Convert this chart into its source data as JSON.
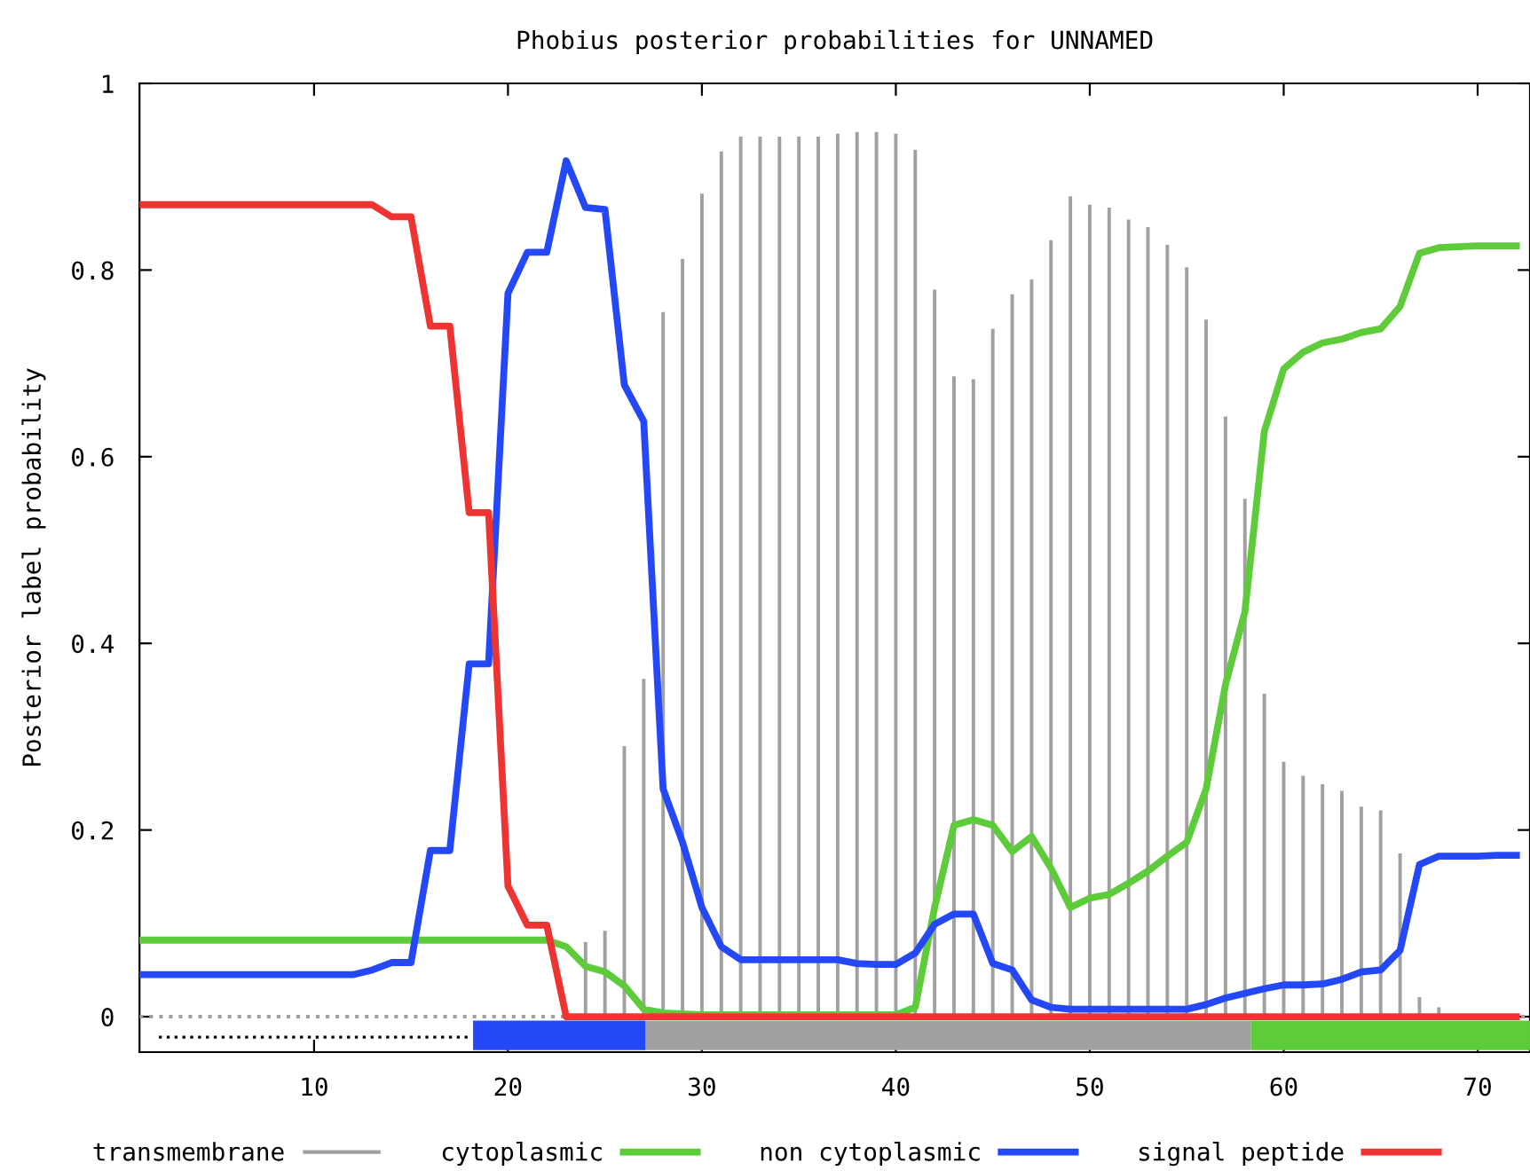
{
  "chart_data": {
    "type": "line",
    "title": "Phobius posterior probabilities for UNNAMED",
    "ylabel": "Posterior label probability",
    "xlim": [
      1,
      72.7
    ],
    "ylim": [
      -0.038,
      1
    ],
    "xticks": [
      10,
      20,
      30,
      40,
      50,
      60,
      70
    ],
    "yticks": [
      0,
      {
        "value": 0.2,
        "label": "0.2"
      },
      {
        "value": 0.4,
        "label": "0.4"
      },
      {
        "value": 0.6,
        "label": "0.6"
      },
      {
        "value": 0.8,
        "label": "0.8"
      },
      1
    ],
    "legend": "bottom",
    "grid": false,
    "ref_lines": [
      {
        "axis": "y",
        "value": 0,
        "color": "#a0a0a0",
        "line_style": "dotted"
      }
    ],
    "series": [
      {
        "name": "transmembrane",
        "type": "bar",
        "color": "#a0a0a0",
        "x": [
          24,
          25,
          26,
          27,
          28,
          29,
          30,
          31,
          32,
          33,
          34,
          35,
          36,
          37,
          38,
          39,
          40,
          41,
          42,
          43,
          44,
          45,
          46,
          47,
          48,
          49,
          50,
          51,
          52,
          53,
          54,
          55,
          56,
          57,
          58,
          59,
          60,
          61,
          62,
          63,
          64,
          65,
          66,
          67,
          68
        ],
        "values": [
          0.08,
          0.092,
          0.29,
          0.362,
          0.755,
          0.812,
          0.882,
          0.927,
          0.943,
          0.943,
          0.943,
          0.943,
          0.943,
          0.946,
          0.948,
          0.948,
          0.946,
          0.929,
          0.779,
          0.686,
          0.683,
          0.737,
          0.774,
          0.79,
          0.832,
          0.879,
          0.87,
          0.867,
          0.854,
          0.846,
          0.827,
          0.803,
          0.747,
          0.643,
          0.555,
          0.346,
          0.273,
          0.258,
          0.249,
          0.242,
          0.225,
          0.221,
          0.175,
          0.021,
          0.01
        ]
      },
      {
        "name": "cytoplasmic",
        "color": "#5ecb3a",
        "x": [
          1,
          2,
          3,
          4,
          5,
          6,
          7,
          8,
          9,
          10,
          11,
          12,
          13,
          14,
          15,
          16,
          17,
          18,
          19,
          20,
          21,
          22,
          23,
          24,
          25,
          26,
          27,
          28,
          29,
          30,
          31,
          32,
          33,
          34,
          35,
          36,
          37,
          38,
          39,
          40,
          41,
          42,
          43,
          44,
          45,
          46,
          47,
          48,
          49,
          50,
          51,
          52,
          53,
          54,
          55,
          56,
          57,
          58,
          59,
          60,
          61,
          62,
          63,
          64,
          65,
          66,
          67,
          68,
          69,
          70,
          71,
          72
        ],
        "values": [
          0.082,
          0.082,
          0.082,
          0.082,
          0.082,
          0.082,
          0.082,
          0.082,
          0.082,
          0.082,
          0.082,
          0.082,
          0.082,
          0.082,
          0.082,
          0.082,
          0.082,
          0.082,
          0.082,
          0.082,
          0.082,
          0.082,
          0.075,
          0.054,
          0.048,
          0.033,
          0.008,
          0.004,
          0.003,
          0.002,
          0.002,
          0.002,
          0.002,
          0.002,
          0.002,
          0.002,
          0.002,
          0.002,
          0.002,
          0.002,
          0.01,
          0.117,
          0.205,
          0.211,
          0.205,
          0.177,
          0.193,
          0.159,
          0.117,
          0.127,
          0.131,
          0.143,
          0.156,
          0.172,
          0.187,
          0.244,
          0.356,
          0.434,
          0.627,
          0.694,
          0.712,
          0.722,
          0.726,
          0.733,
          0.737,
          0.761,
          0.818,
          0.824,
          0.825,
          0.826,
          0.826,
          0.826
        ]
      },
      {
        "name": "non cytoplasmic",
        "color": "#2448f5",
        "x": [
          1,
          2,
          3,
          4,
          5,
          6,
          7,
          8,
          9,
          10,
          11,
          12,
          13,
          14,
          15,
          16,
          17,
          18,
          19,
          20,
          21,
          22,
          23,
          24,
          25,
          26,
          27,
          28,
          29,
          30,
          31,
          32,
          33,
          34,
          35,
          36,
          37,
          38,
          39,
          40,
          41,
          42,
          43,
          44,
          45,
          46,
          47,
          48,
          49,
          50,
          51,
          52,
          53,
          54,
          55,
          56,
          57,
          58,
          59,
          60,
          61,
          62,
          63,
          64,
          65,
          66,
          67,
          68,
          69,
          70,
          71,
          72
        ],
        "values": [
          0.045,
          0.045,
          0.045,
          0.045,
          0.045,
          0.045,
          0.045,
          0.045,
          0.045,
          0.045,
          0.045,
          0.045,
          0.05,
          0.058,
          0.058,
          0.178,
          0.178,
          0.378,
          0.378,
          0.775,
          0.819,
          0.819,
          0.917,
          0.867,
          0.865,
          0.677,
          0.638,
          0.244,
          0.187,
          0.117,
          0.075,
          0.061,
          0.061,
          0.061,
          0.061,
          0.061,
          0.061,
          0.057,
          0.056,
          0.056,
          0.068,
          0.099,
          0.11,
          0.11,
          0.057,
          0.05,
          0.018,
          0.01,
          0.008,
          0.008,
          0.008,
          0.008,
          0.008,
          0.008,
          0.008,
          0.013,
          0.02,
          0.025,
          0.03,
          0.034,
          0.034,
          0.035,
          0.04,
          0.048,
          0.05,
          0.071,
          0.163,
          0.172,
          0.172,
          0.172,
          0.173,
          0.173
        ]
      },
      {
        "name": "signal peptide",
        "color": "#ee3333",
        "x": [
          1,
          2,
          3,
          4,
          5,
          6,
          7,
          8,
          9,
          10,
          11,
          12,
          13,
          14,
          15,
          16,
          17,
          18,
          19,
          20,
          21,
          22,
          23,
          24,
          25,
          26,
          27,
          28,
          29,
          30,
          31,
          32,
          33,
          34,
          35,
          36,
          37,
          38,
          39,
          40,
          41,
          42,
          43,
          44,
          45,
          46,
          47,
          48,
          49,
          50,
          51,
          52,
          53,
          54,
          55,
          56,
          57,
          58,
          59,
          60,
          61,
          62,
          63,
          64,
          65,
          66,
          67,
          68,
          69,
          70,
          71,
          72
        ],
        "values": [
          0.87,
          0.87,
          0.87,
          0.87,
          0.87,
          0.87,
          0.87,
          0.87,
          0.87,
          0.87,
          0.87,
          0.87,
          0.87,
          0.857,
          0.857,
          0.74,
          0.74,
          0.54,
          0.54,
          0.14,
          0.098,
          0.098,
          0,
          0,
          0,
          0,
          0,
          0,
          0,
          0,
          0,
          0,
          0,
          0,
          0,
          0,
          0,
          0,
          0,
          0,
          0,
          0,
          0,
          0,
          0,
          0,
          0,
          0,
          0,
          0,
          0,
          0,
          0,
          0,
          0,
          0,
          0,
          0,
          0,
          0,
          0,
          0,
          0,
          0,
          0,
          0,
          0,
          0,
          0,
          0,
          0,
          0
        ]
      },
      {
        "color": "#000000",
        "line_style": "dotted",
        "x": [
          2,
          18
        ],
        "values": [
          -0.022,
          -0.022
        ]
      },
      {
        "color": "#2448f5",
        "x": [
          18.2,
          27.1
        ],
        "values": [
          -0.02,
          -0.02
        ]
      },
      {
        "color": "#a0a0a0",
        "x": [
          27.1,
          58.3
        ],
        "values": [
          -0.02,
          -0.02
        ]
      },
      {
        "color": "#5ecb3a",
        "x": [
          58.3,
          72.7
        ],
        "values": [
          -0.02,
          -0.02
        ]
      }
    ]
  }
}
